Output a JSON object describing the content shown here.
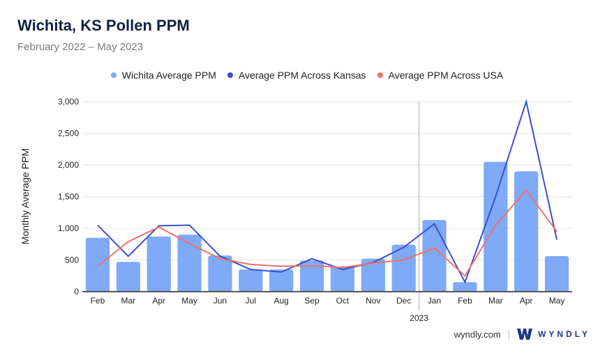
{
  "chart_data": {
    "type": "bar",
    "title": "Wichita, KS Pollen PPM",
    "subtitle": "February 2022 – May 2023",
    "xlabel": "",
    "ylabel": "Monthly Average PPM",
    "ylim": [
      0,
      3000
    ],
    "yticks": [
      0,
      500,
      1000,
      1500,
      2000,
      2500,
      3000
    ],
    "ytick_labels": [
      "0",
      "500",
      "1,000",
      "1,500",
      "2,000",
      "2,500",
      "3,000"
    ],
    "grid": true,
    "legend_position": "top-center",
    "categories": [
      "Feb",
      "Mar",
      "Apr",
      "May",
      "Jun",
      "Jul",
      "Aug",
      "Sep",
      "Oct",
      "Nov",
      "Dec",
      "Jan",
      "Feb",
      "Mar",
      "Apr",
      "May"
    ],
    "year_marker": {
      "label": "2023",
      "before_index": 11
    },
    "series": [
      {
        "name": "Wichita Average PPM",
        "type": "bar",
        "color": "#7eaaf7",
        "values": [
          850,
          470,
          870,
          900,
          570,
          350,
          350,
          490,
          400,
          520,
          740,
          1130,
          150,
          2050,
          1900,
          560
        ]
      },
      {
        "name": "Average PPM Across Kansas",
        "type": "line",
        "color": "#3a4fd0",
        "values": [
          1050,
          560,
          1040,
          1050,
          560,
          350,
          310,
          520,
          350,
          460,
          700,
          1070,
          150,
          1500,
          3000,
          820
        ]
      },
      {
        "name": "Average PPM Across USA",
        "type": "line",
        "color": "#f0716a",
        "values": [
          400,
          790,
          1020,
          760,
          520,
          430,
          400,
          410,
          380,
          450,
          500,
          690,
          250,
          1050,
          1600,
          950
        ]
      }
    ]
  },
  "footer": {
    "site": "wyndly.com",
    "separator": "|",
    "brand": "WYNDLY"
  }
}
